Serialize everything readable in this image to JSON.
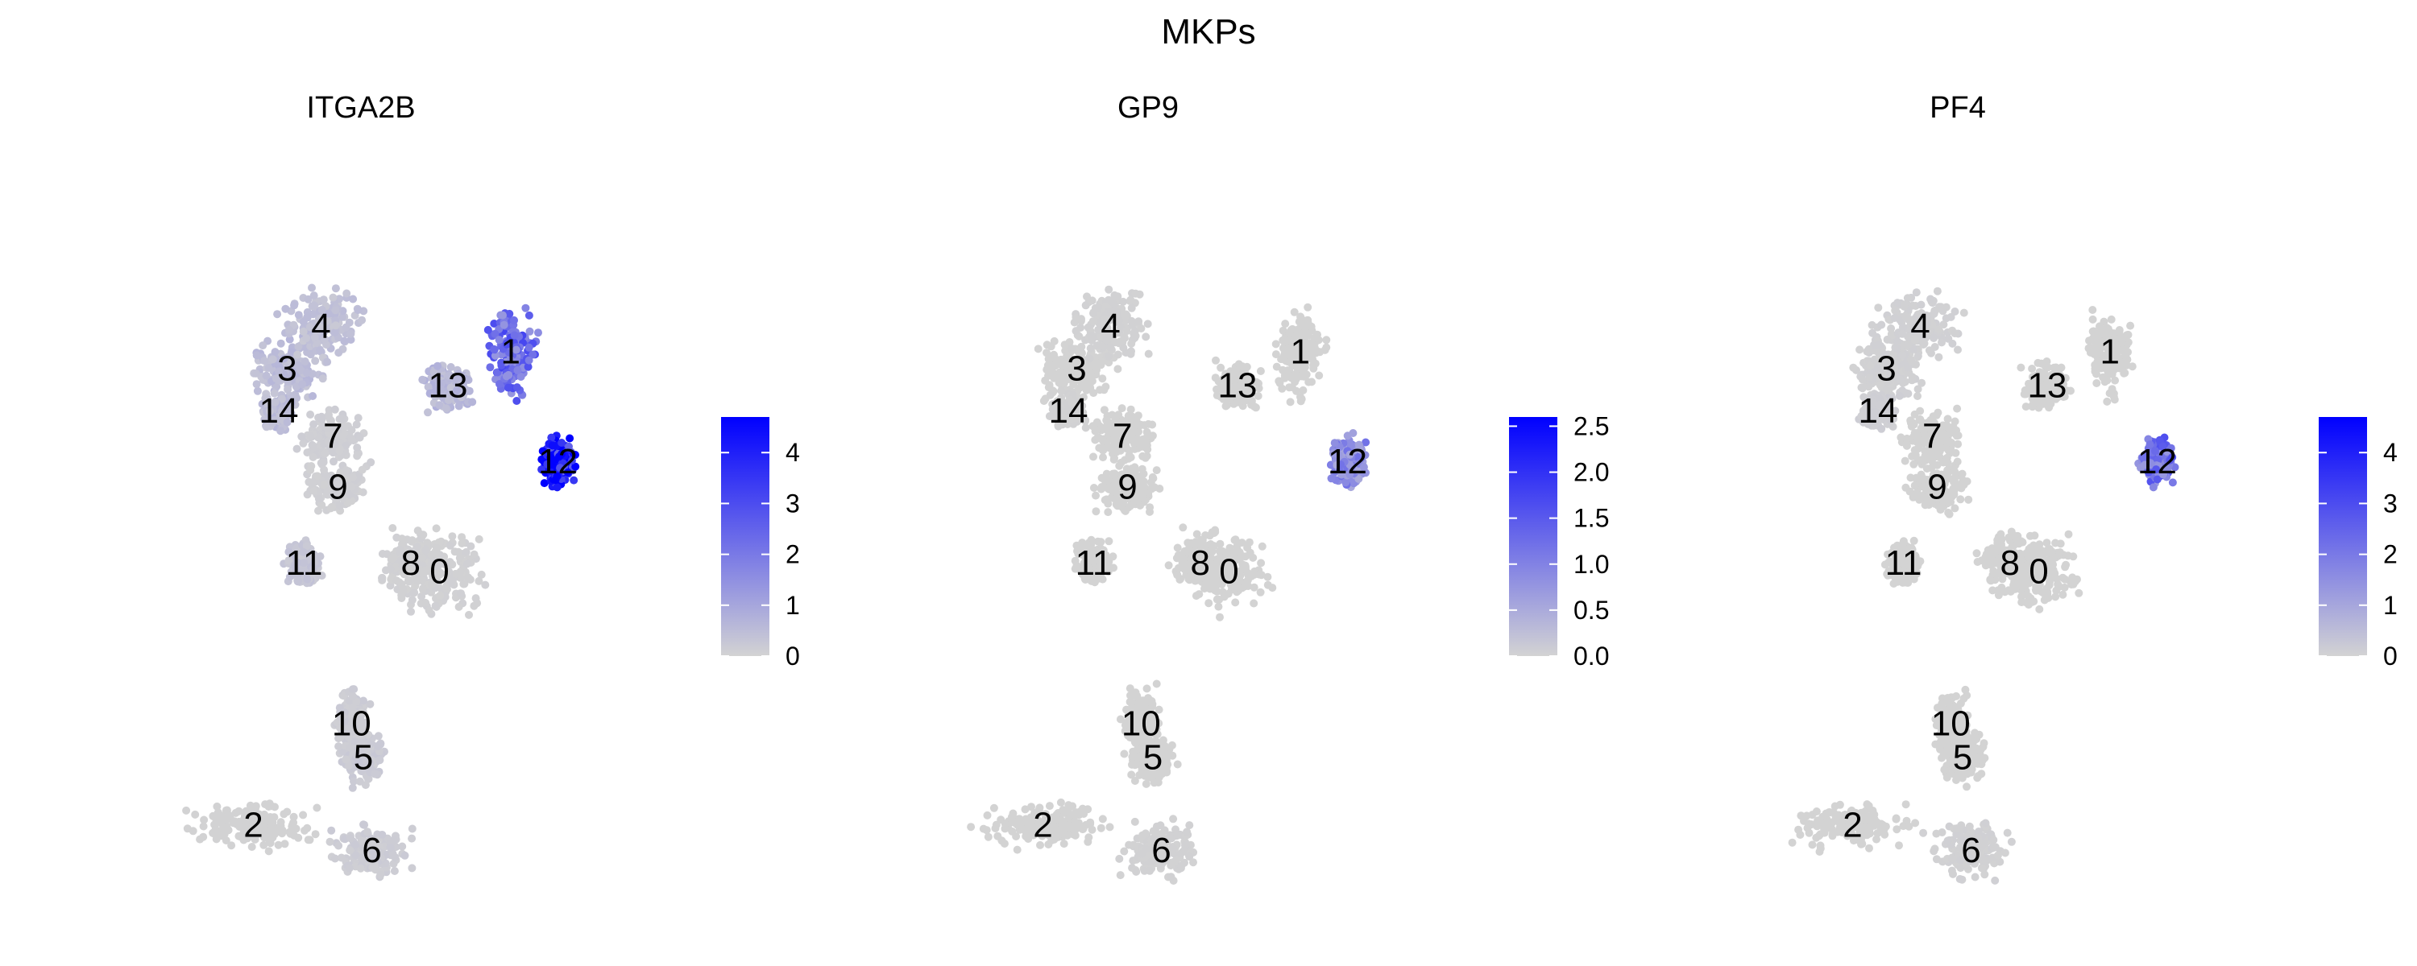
{
  "figure": {
    "title": "MKPs"
  },
  "palette": {
    "low": "#d3d3d3",
    "high": "#0000ff"
  },
  "chart_data": [
    {
      "type": "scatter",
      "title": "ITGA2B",
      "legend": {
        "position": "right",
        "max": 4.7,
        "ticks": [
          0,
          1,
          2,
          3,
          4
        ]
      },
      "clusters": [
        {
          "label": "0",
          "x": 0.55,
          "y": -0.05,
          "express": 0.05
        },
        {
          "label": "1",
          "x": 0.97,
          "y": 1.25,
          "express": 2.4
        },
        {
          "label": "2",
          "x": -0.55,
          "y": -1.55,
          "express": 0.02
        },
        {
          "label": "3",
          "x": -0.35,
          "y": 1.15,
          "express": 0.5
        },
        {
          "label": "4",
          "x": -0.15,
          "y": 1.4,
          "express": 0.4
        },
        {
          "label": "5",
          "x": 0.1,
          "y": -1.15,
          "express": 0.2
        },
        {
          "label": "6",
          "x": 0.15,
          "y": -1.7,
          "express": 0.15
        },
        {
          "label": "7",
          "x": -0.08,
          "y": 0.75,
          "express": 0.1
        },
        {
          "label": "8",
          "x": 0.38,
          "y": 0.0,
          "express": 0.05
        },
        {
          "label": "9",
          "x": -0.05,
          "y": 0.45,
          "express": 0.08
        },
        {
          "label": "10",
          "x": 0.03,
          "y": -0.95,
          "express": 0.15
        },
        {
          "label": "11",
          "x": -0.25,
          "y": 0.0,
          "express": 0.3
        },
        {
          "label": "12",
          "x": 1.25,
          "y": 0.6,
          "express": 4.2
        },
        {
          "label": "13",
          "x": 0.6,
          "y": 1.05,
          "express": 0.6
        },
        {
          "label": "14",
          "x": -0.4,
          "y": 0.9,
          "express": 0.5
        }
      ]
    },
    {
      "type": "scatter",
      "title": "GP9",
      "legend": {
        "position": "right",
        "max": 2.6,
        "ticks": [
          "0.0",
          "0.5",
          "1.0",
          "1.5",
          "2.0",
          "2.5"
        ]
      },
      "clusters": [
        {
          "label": "0",
          "x": 0.55,
          "y": -0.05,
          "express": 0.0
        },
        {
          "label": "1",
          "x": 0.97,
          "y": 1.25,
          "express": 0.0
        },
        {
          "label": "2",
          "x": -0.55,
          "y": -1.55,
          "express": 0.0
        },
        {
          "label": "3",
          "x": -0.35,
          "y": 1.15,
          "express": 0.0
        },
        {
          "label": "4",
          "x": -0.15,
          "y": 1.4,
          "express": 0.02
        },
        {
          "label": "5",
          "x": 0.1,
          "y": -1.15,
          "express": 0.0
        },
        {
          "label": "6",
          "x": 0.15,
          "y": -1.7,
          "express": 0.02
        },
        {
          "label": "7",
          "x": -0.08,
          "y": 0.75,
          "express": 0.0
        },
        {
          "label": "8",
          "x": 0.38,
          "y": 0.0,
          "express": 0.0
        },
        {
          "label": "9",
          "x": -0.05,
          "y": 0.45,
          "express": 0.0
        },
        {
          "label": "10",
          "x": 0.03,
          "y": -0.95,
          "express": 0.0
        },
        {
          "label": "11",
          "x": -0.25,
          "y": 0.0,
          "express": 0.0
        },
        {
          "label": "12",
          "x": 1.25,
          "y": 0.6,
          "express": 0.9
        },
        {
          "label": "13",
          "x": 0.6,
          "y": 1.05,
          "express": 0.0
        },
        {
          "label": "14",
          "x": -0.4,
          "y": 0.9,
          "express": 0.02
        }
      ]
    },
    {
      "type": "scatter",
      "title": "PF4",
      "legend": {
        "position": "right",
        "max": 4.7,
        "ticks": [
          0,
          1,
          2,
          3,
          4
        ]
      },
      "clusters": [
        {
          "label": "0",
          "x": 0.55,
          "y": -0.05,
          "express": 0.0
        },
        {
          "label": "1",
          "x": 0.97,
          "y": 1.25,
          "express": 0.0
        },
        {
          "label": "2",
          "x": -0.55,
          "y": -1.55,
          "express": 0.0
        },
        {
          "label": "3",
          "x": -0.35,
          "y": 1.15,
          "express": 0.05
        },
        {
          "label": "4",
          "x": -0.15,
          "y": 1.4,
          "express": 0.05
        },
        {
          "label": "5",
          "x": 0.1,
          "y": -1.15,
          "express": 0.0
        },
        {
          "label": "6",
          "x": 0.15,
          "y": -1.7,
          "express": 0.05
        },
        {
          "label": "7",
          "x": -0.08,
          "y": 0.75,
          "express": 0.0
        },
        {
          "label": "8",
          "x": 0.38,
          "y": 0.0,
          "express": 0.0
        },
        {
          "label": "9",
          "x": -0.05,
          "y": 0.45,
          "express": 0.0
        },
        {
          "label": "10",
          "x": 0.03,
          "y": -0.95,
          "express": 0.0
        },
        {
          "label": "11",
          "x": -0.25,
          "y": 0.0,
          "express": 0.0
        },
        {
          "label": "12",
          "x": 1.25,
          "y": 0.6,
          "express": 2.2
        },
        {
          "label": "13",
          "x": 0.6,
          "y": 1.05,
          "express": 0.0
        },
        {
          "label": "14",
          "x": -0.4,
          "y": 0.9,
          "express": 0.1
        }
      ]
    }
  ]
}
